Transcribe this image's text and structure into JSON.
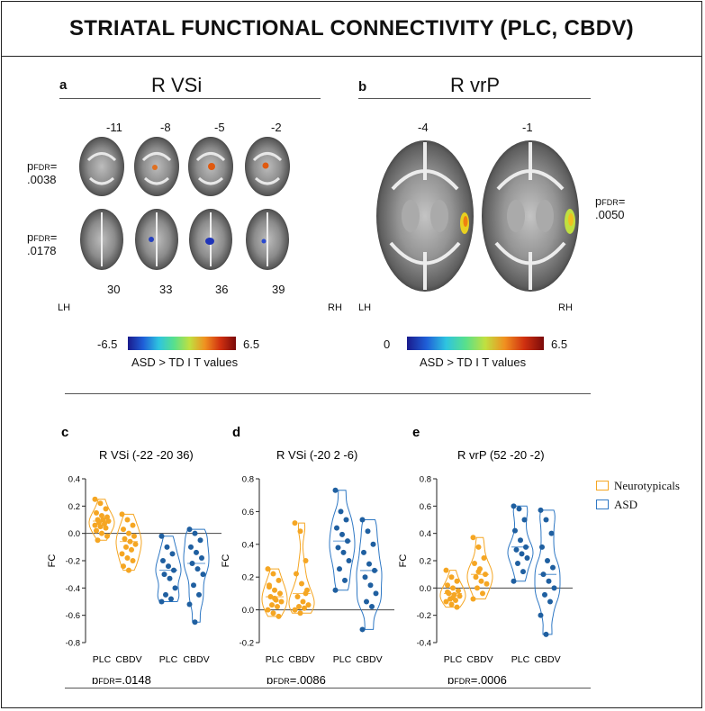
{
  "title": "STRIATAL FUNCTIONAL CONNECTIVITY (PLC, CBDV)",
  "panel_a": {
    "letter": "a",
    "region": "R VSi",
    "top_slices": [
      "-11",
      "-8",
      "-5",
      "-2"
    ],
    "bottom_slices": [
      "30",
      "33",
      "36",
      "39"
    ],
    "p_top_prefix": "p",
    "p_top_sub": "FDR",
    "p_top_eq": "=",
    "p_top_val": ".0038",
    "p_bot_prefix": "p",
    "p_bot_sub": "FDR",
    "p_bot_eq": "=",
    "p_bot_val": ".0178",
    "lh": "LH",
    "rh": "RH",
    "cbar_min": "-6.5",
    "cbar_max": "6.5",
    "cbar_label": "ASD > TD I T values"
  },
  "panel_b": {
    "letter": "b",
    "region": "R vrP",
    "slices": [
      "-4",
      "-1"
    ],
    "p_prefix": "p",
    "p_sub": "FDR",
    "p_eq": "=",
    "p_val": ".0050",
    "lh": "LH",
    "rh": "RH",
    "cbar_min": "0",
    "cbar_max": "6.5",
    "cbar_label": "ASD > TD I T values"
  },
  "legend": {
    "neurotypicals": "Neurotypicals",
    "asd": "ASD",
    "nt_color": "#f5a623",
    "asd_color": "#1f5fa0"
  },
  "chart_data": [
    {
      "panel": "c",
      "type": "violin",
      "title": "R VSi (-22 -20 36)",
      "ylabel": "FC",
      "ylim": [
        -0.8,
        0.4
      ],
      "yticks": [
        "0.4",
        "0.2",
        "0.0",
        "-0.2",
        "-0.4",
        "-0.6",
        "-0.8"
      ],
      "tick_values": [
        0.4,
        0.2,
        0.0,
        -0.2,
        -0.4,
        -0.6,
        -0.8
      ],
      "categories": [
        "PLC",
        "CBDV",
        "PLC",
        "CBDV"
      ],
      "series": [
        {
          "name": "Neurotypicals PLC",
          "values": [
            0.25,
            0.22,
            0.18,
            0.15,
            0.13,
            0.12,
            0.1,
            0.1,
            0.09,
            0.08,
            0.07,
            0.06,
            0.05,
            0.04,
            0.02,
            0.0,
            -0.02,
            -0.05
          ]
        },
        {
          "name": "Neurotypicals CBDV",
          "values": [
            0.14,
            0.1,
            0.06,
            0.03,
            0.0,
            -0.02,
            -0.04,
            -0.06,
            -0.08,
            -0.1,
            -0.12,
            -0.15,
            -0.18,
            -0.2,
            -0.24,
            -0.27
          ]
        },
        {
          "name": "ASD PLC",
          "values": [
            -0.02,
            -0.1,
            -0.15,
            -0.2,
            -0.24,
            -0.27,
            -0.3,
            -0.33,
            -0.4,
            -0.45,
            -0.48,
            -0.5
          ]
        },
        {
          "name": "ASD CBDV",
          "values": [
            0.03,
            0.0,
            -0.05,
            -0.1,
            -0.14,
            -0.18,
            -0.22,
            -0.26,
            -0.3,
            -0.38,
            -0.45,
            -0.52,
            -0.65
          ]
        }
      ],
      "p_prefix": "p",
      "p_sub": "FDR",
      "p_val": "=.0148"
    },
    {
      "panel": "d",
      "type": "violin",
      "title": "R VSi (-20 2 -6)",
      "ylabel": "FC",
      "ylim": [
        -0.2,
        0.8
      ],
      "yticks": [
        "0.8",
        "0.6",
        "0.4",
        "0.2",
        "0.0",
        "-0.2"
      ],
      "tick_values": [
        0.8,
        0.6,
        0.4,
        0.2,
        0.0,
        -0.2
      ],
      "categories": [
        "PLC",
        "CBDV",
        "PLC",
        "CBDV"
      ],
      "series": [
        {
          "name": "Neurotypicals PLC",
          "values": [
            0.25,
            0.22,
            0.18,
            0.14,
            0.12,
            0.1,
            0.08,
            0.06,
            0.05,
            0.03,
            0.02,
            0.0,
            -0.02,
            -0.04,
            0.15,
            0.07
          ]
        },
        {
          "name": "Neurotypicals CBDV",
          "values": [
            0.53,
            0.48,
            0.3,
            0.22,
            0.16,
            0.12,
            0.08,
            0.05,
            0.03,
            0.02,
            0.01,
            0.0,
            -0.02,
            0.1
          ]
        },
        {
          "name": "ASD PLC",
          "values": [
            0.73,
            0.6,
            0.55,
            0.5,
            0.46,
            0.42,
            0.38,
            0.35,
            0.3,
            0.25,
            0.18,
            0.12
          ]
        },
        {
          "name": "ASD CBDV",
          "values": [
            0.55,
            0.48,
            0.4,
            0.35,
            0.28,
            0.24,
            0.2,
            0.15,
            0.1,
            0.05,
            0.02,
            -0.12
          ]
        }
      ],
      "p_prefix": "p",
      "p_sub": "FDR",
      "p_val": "=.0086"
    },
    {
      "panel": "e",
      "type": "violin",
      "title": "R vrP (52 -20 -2)",
      "ylabel": "FC",
      "ylim": [
        -0.4,
        0.8
      ],
      "yticks": [
        "0.8",
        "0.6",
        "0.4",
        "0.2",
        "0.0",
        "-0.2",
        "-0.4"
      ],
      "tick_values": [
        0.8,
        0.6,
        0.4,
        0.2,
        0.0,
        -0.2,
        -0.4
      ],
      "categories": [
        "PLC",
        "CBDV",
        "PLC",
        "CBDV"
      ],
      "series": [
        {
          "name": "Neurotypicals PLC",
          "values": [
            0.13,
            0.08,
            0.05,
            0.02,
            0.0,
            -0.02,
            -0.04,
            -0.05,
            -0.06,
            -0.08,
            -0.09,
            -0.1,
            -0.12,
            -0.14,
            -0.03,
            -0.07
          ]
        },
        {
          "name": "Neurotypicals CBDV",
          "values": [
            0.37,
            0.3,
            0.22,
            0.18,
            0.14,
            0.1,
            0.08,
            0.05,
            0.03,
            0.0,
            -0.04,
            -0.08,
            0.12
          ]
        },
        {
          "name": "ASD PLC",
          "values": [
            0.6,
            0.58,
            0.5,
            0.42,
            0.35,
            0.3,
            0.28,
            0.25,
            0.22,
            0.18,
            0.12,
            0.05
          ]
        },
        {
          "name": "ASD CBDV",
          "values": [
            0.57,
            0.5,
            0.4,
            0.3,
            0.2,
            0.15,
            0.1,
            0.05,
            0.0,
            -0.05,
            -0.1,
            -0.2,
            -0.34
          ]
        }
      ],
      "p_prefix": "p",
      "p_sub": "FDR",
      "p_val": "=.0006"
    }
  ]
}
